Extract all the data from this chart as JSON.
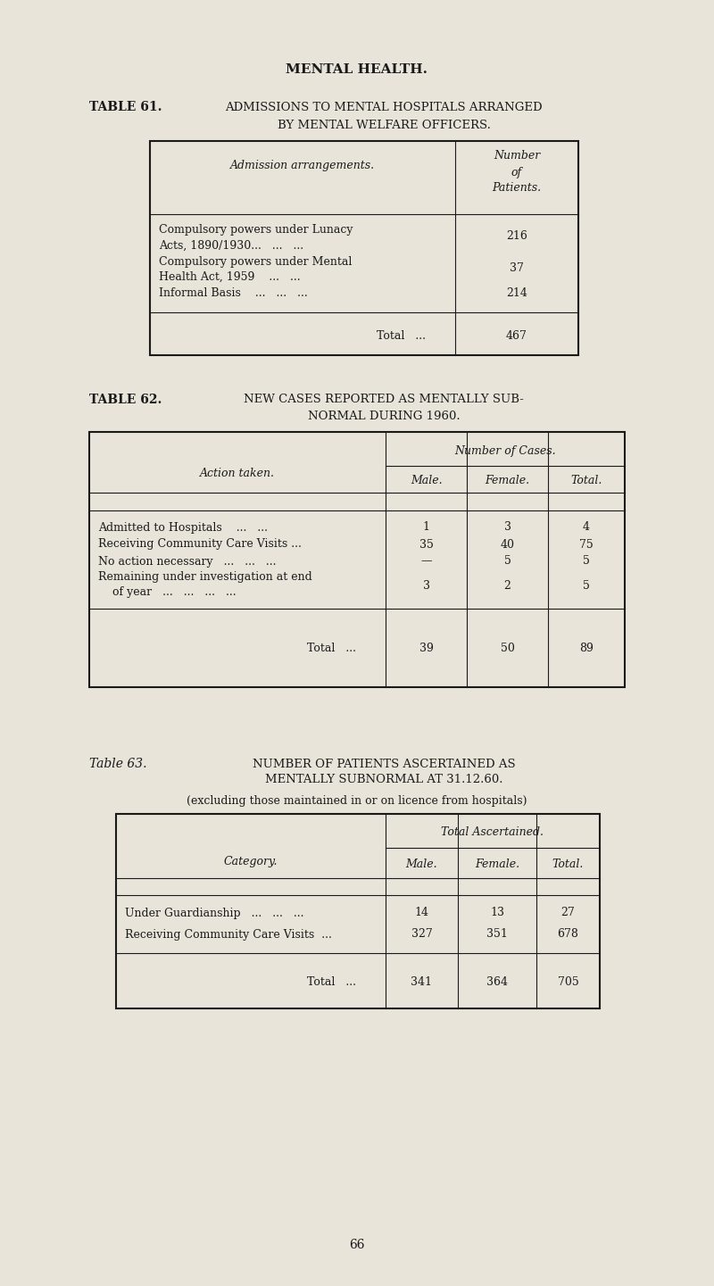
{
  "bg_color": "#e8e4da",
  "text_color": "#1a1a1a",
  "page_title": "MENTAL HEALTH.",
  "page_number": "66",
  "table61_label": "TABLE 61.",
  "table61_title_line1": "ADMISSIONS TO MENTAL HOSPITALS ARRANGED",
  "table61_title_line2": "BY MENTAL WELFARE OFFICERS.",
  "table61_col1_header": "Admission arrangements.",
  "table61_col2_header_line1": "Number",
  "table61_col2_header_line2": "of",
  "table61_col2_header_line3": "Patients.",
  "table61_total_label": "Total   ...",
  "table61_total_value": "467",
  "table62_label": "TABLE 62.",
  "table62_title_line1": "NEW CASES REPORTED AS MENTALLY SUB-",
  "table62_title_line2": "NORMAL DURING 1960.",
  "table62_col1_header": "Action taken.",
  "table62_group_header": "Number of Cases.",
  "table62_col2_header": "Male.",
  "table62_col3_header": "Female.",
  "table62_col4_header": "Total.",
  "table62_total_male": "39",
  "table62_total_female": "50",
  "table62_total_total": "89",
  "table63_label": "Table 63.",
  "table63_title_line1": "NUMBER OF PATIENTS ASCERTAINED AS",
  "table63_title_line2": "MENTALLY SUBNORMAL AT 31.12.60.",
  "table63_subtitle": "(excluding those maintained in or on licence from hospitals)",
  "table63_col1_header": "Category.",
  "table63_group_header": "Total Ascertained.",
  "table63_col2_header": "Male.",
  "table63_col3_header": "Female.",
  "table63_col4_header": "Total.",
  "table63_total_male": "341",
  "table63_total_female": "364",
  "table63_total_total": "705"
}
